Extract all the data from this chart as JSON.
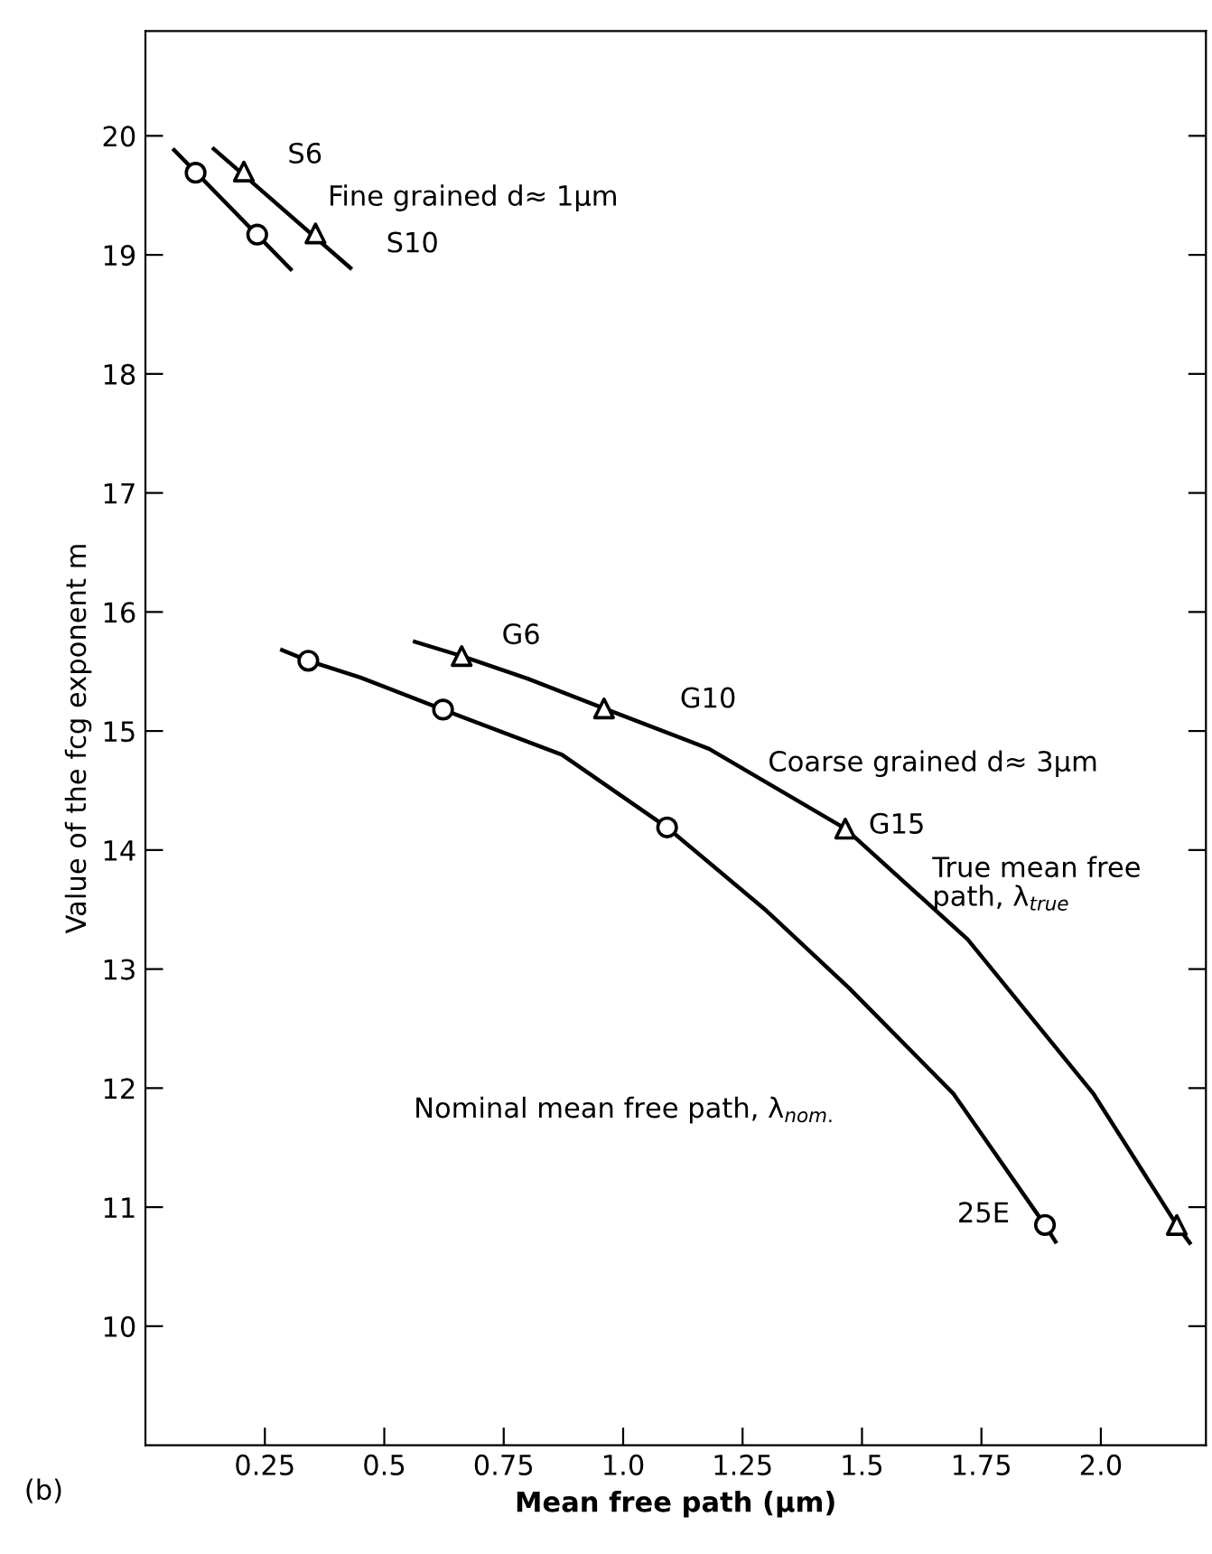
{
  "chart_data": {
    "type": "line",
    "xlabel": "Mean free path (μm)",
    "ylabel": "Value of the fcg exponent m",
    "xlim": [
      0,
      2.22
    ],
    "ylim": [
      9,
      20.88
    ],
    "xticks": [
      0.25,
      {
        "value": 0.5,
        "label": "0.5"
      },
      0.75,
      {
        "value": 1.0,
        "label": "1.0"
      },
      1.25,
      {
        "value": 1.5,
        "label": "1.5"
      },
      1.75,
      {
        "value": 2.0,
        "label": "2.0"
      }
    ],
    "yticks": [
      10,
      11,
      12,
      13,
      14,
      15,
      16,
      17,
      18,
      19,
      20
    ],
    "grid": false,
    "legend": false,
    "series": [
      {
        "color": "#000000",
        "marker": "none",
        "x": [
          0.06,
          0.304
        ],
        "values": [
          19.88,
          18.88
        ]
      },
      {
        "color": "#000000",
        "marker": "none",
        "x": [
          0.143,
          0.429
        ],
        "values": [
          19.89,
          18.89
        ]
      },
      {
        "color": "#000000",
        "marker": "none",
        "x": [
          0.286,
          0.341,
          0.45,
          0.623,
          0.872,
          1.092,
          1.3,
          1.473,
          1.692,
          1.883,
          1.905
        ],
        "values": [
          15.68,
          15.59,
          15.45,
          15.18,
          14.8,
          14.19,
          13.49,
          12.84,
          11.95,
          10.85,
          10.71
        ]
      },
      {
        "color": "#000000",
        "marker": "none",
        "x": [
          0.564,
          0.662,
          0.8,
          0.96,
          1.18,
          1.465,
          1.721,
          1.985,
          2.159,
          2.186
        ],
        "values": [
          15.75,
          15.63,
          15.44,
          15.19,
          14.85,
          14.18,
          13.25,
          11.95,
          10.85,
          10.7
        ]
      },
      {
        "type": "scatter",
        "color": "#000000",
        "marker": "circle",
        "x": [
          0.105,
          0.234,
          0.341,
          0.623,
          1.092,
          1.883
        ],
        "values": [
          19.69,
          19.17,
          15.59,
          15.18,
          14.19,
          10.85
        ]
      },
      {
        "type": "scatter",
        "color": "#000000",
        "marker": "triangle",
        "x": [
          0.206,
          0.356,
          0.662,
          0.96,
          1.465,
          2.159
        ],
        "values": [
          19.7,
          19.18,
          15.63,
          15.19,
          14.18,
          10.85
        ]
      }
    ],
    "annotations": [
      "S6",
      "S10",
      "Fine grained d≈ 1μm",
      "G6",
      "G10",
      "Coarse grained d≈ 3μm",
      "G15",
      "True mean free\npath, λ$_{true}$",
      "Nominal mean free path, λ$_{nom.}$",
      "25E",
      "(b)"
    ]
  }
}
